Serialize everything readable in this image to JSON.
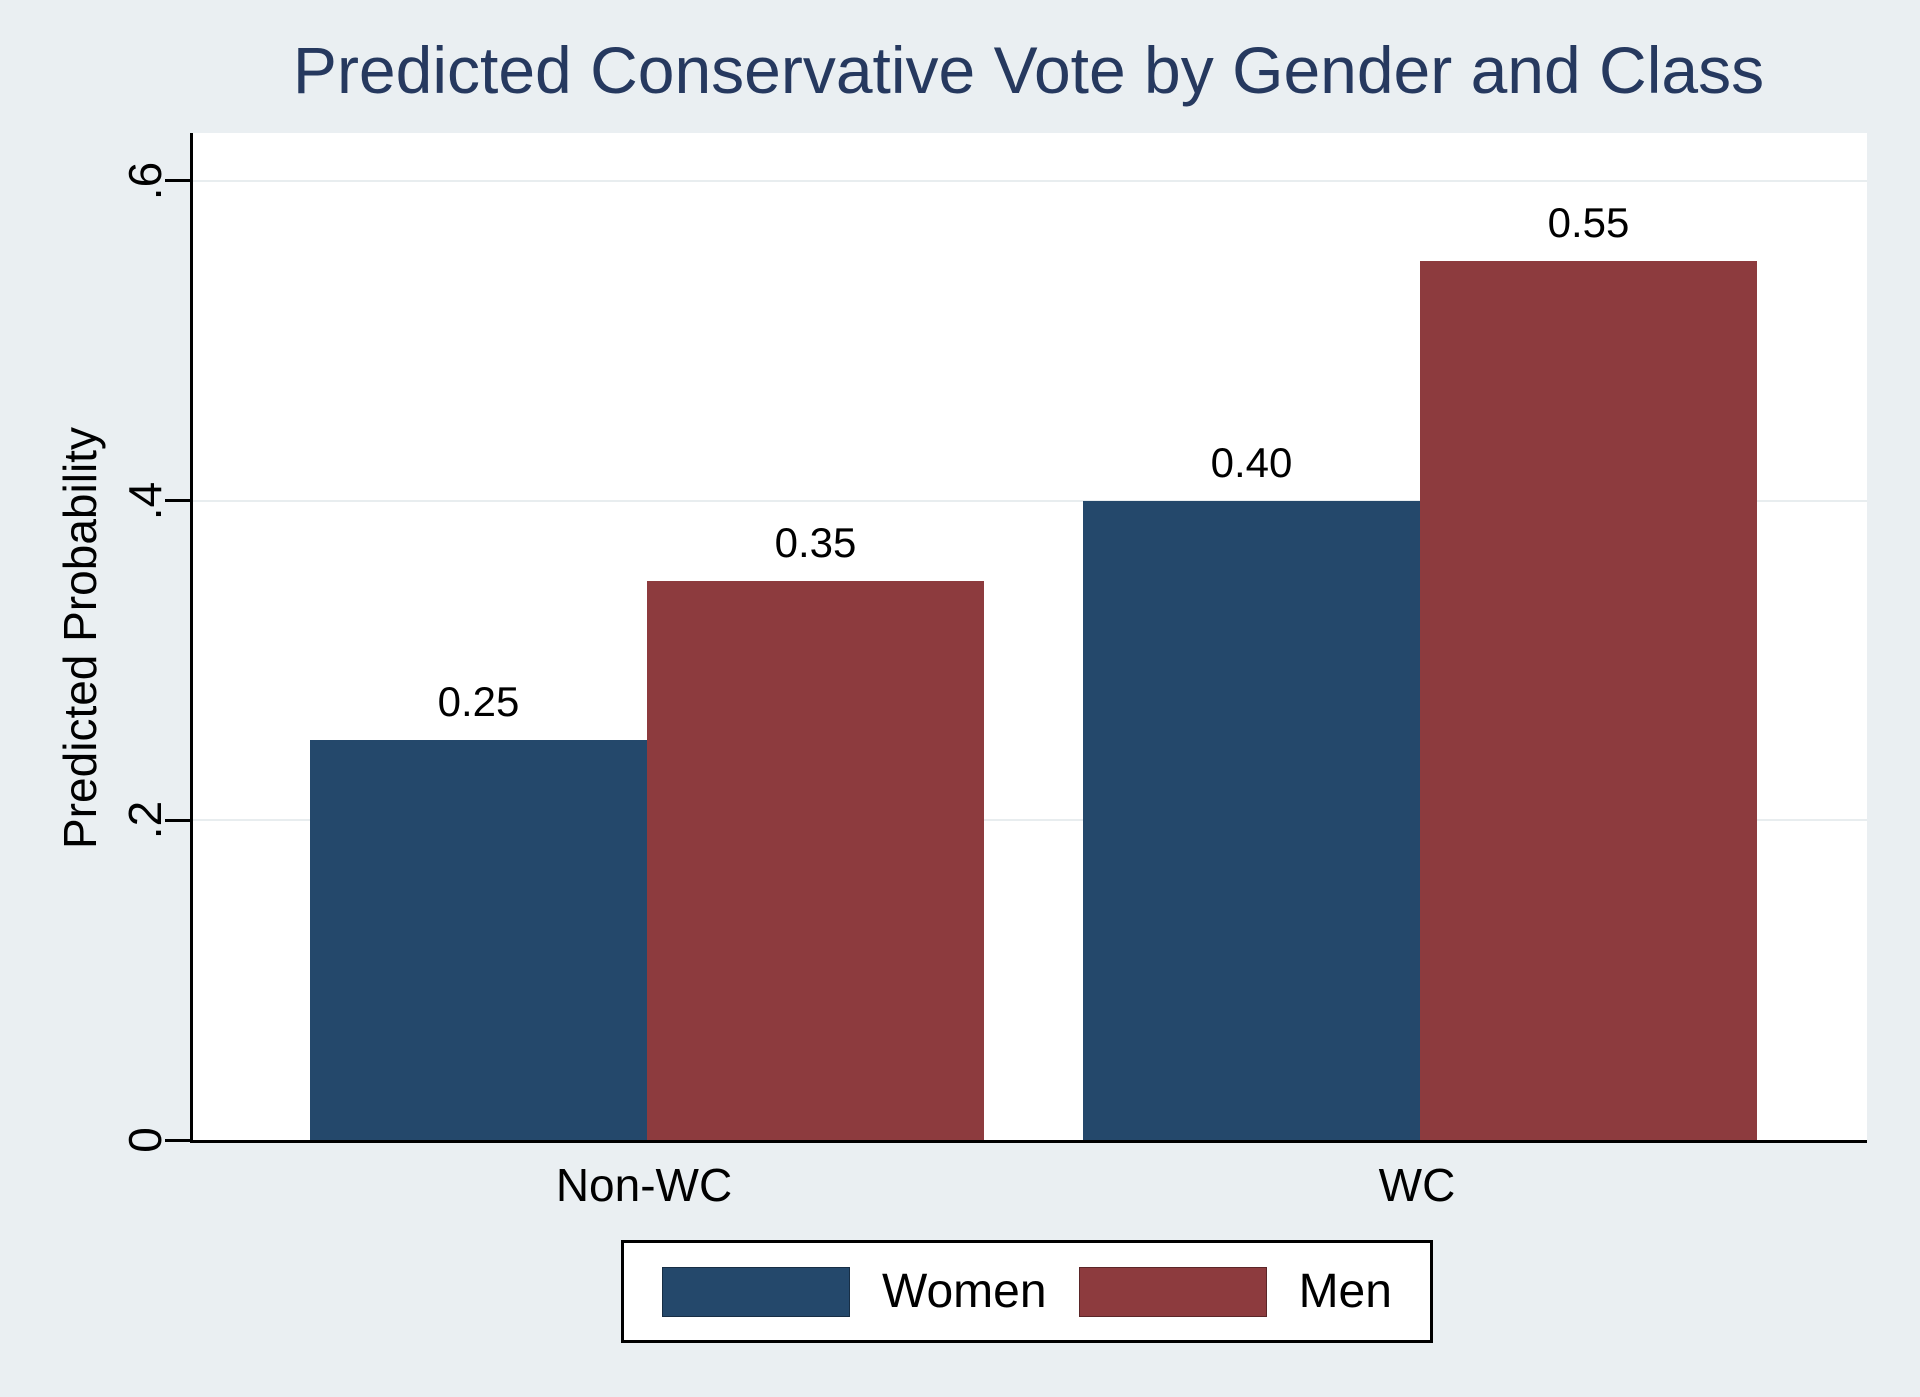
{
  "chart_data": {
    "type": "bar",
    "title": "Predicted Conservative Vote by Gender and Class",
    "categories": [
      "Non-WC",
      "WC"
    ],
    "series": [
      {
        "name": "Women",
        "color": "#24486b",
        "values": [
          0.25,
          0.4
        ]
      },
      {
        "name": "Men",
        "color": "#8d3b3e",
        "values": [
          0.35,
          0.55
        ]
      }
    ],
    "value_label_decimals": 2,
    "value_labels": [
      [
        "0.25",
        "0.40"
      ],
      [
        "0.35",
        "0.55"
      ]
    ],
    "ylabel": "Predicted Probability",
    "xlabel": "",
    "yticks": [
      {
        "value": 0.0,
        "label": "0"
      },
      {
        "value": 0.2,
        "label": ".2"
      },
      {
        "value": 0.4,
        "label": ".4"
      },
      {
        "value": 0.6,
        "label": ".6"
      }
    ],
    "ylim": [
      0,
      0.63
    ],
    "grid": true,
    "legend_position": "bottom-center",
    "ytick_label_angle": 90
  },
  "colors": {
    "background": "#eaeff2",
    "plot_background": "#ffffff",
    "title_text": "#26395f",
    "axis": "#000000",
    "gridline": "#e8edef",
    "women_bar": "#24486b",
    "men_bar": "#8d3b3e",
    "legend_background": "#ffffff",
    "legend_border": "#000000"
  }
}
